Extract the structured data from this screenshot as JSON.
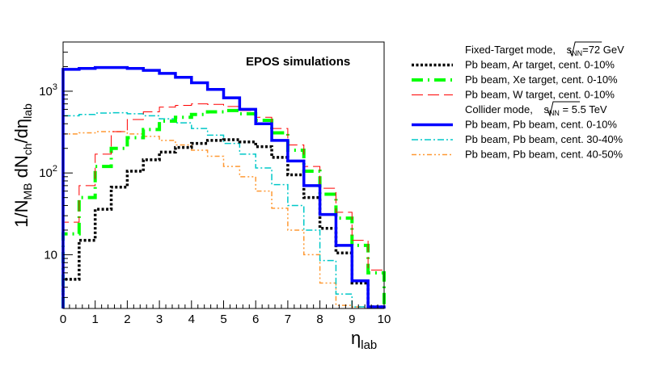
{
  "chart_data": {
    "type": "line",
    "step": true,
    "title": "EPOS simulations",
    "xlabel": "η_lab",
    "ylabel": "1/N_MB dN_ch/dη_lab",
    "xlim": [
      0,
      10
    ],
    "ylim": [
      2.2,
      4000
    ],
    "yscale": "log",
    "bin_edges": [
      0,
      0.5,
      1,
      1.5,
      2,
      2.5,
      3,
      3.5,
      4,
      4.5,
      5,
      5.5,
      6,
      6.5,
      7,
      7.5,
      8,
      8.5,
      9,
      9.5,
      10
    ],
    "x_ticks": [
      "0",
      "1",
      "2",
      "3",
      "4",
      "5",
      "6",
      "7",
      "8",
      "9",
      "10"
    ],
    "x_tick_values": [
      0,
      1,
      2,
      3,
      4,
      5,
      6,
      7,
      8,
      9,
      10
    ],
    "y_ticks": [
      "10",
      "10²",
      "10³"
    ],
    "y_tick_values": [
      10,
      100,
      1000
    ],
    "legend_headers": [
      {
        "text": "Fixed-Target mode, ",
        "sqrt_label": "s",
        "sub": "NN",
        "suffix": "=72 GeV"
      },
      {
        "text": "Collider mode, ",
        "sqrt_label": "s",
        "sub": "NN",
        "suffix": " = 5.5 TeV"
      }
    ],
    "series": [
      {
        "name": "Pb beam, Ar target, cent. 0-10%",
        "color": "#000000",
        "values": [
          5,
          15,
          36,
          67,
          105,
          145,
          180,
          205,
          230,
          250,
          255,
          240,
          210,
          155,
          95,
          50,
          21,
          10.5,
          4.5,
          2.3
        ]
      },
      {
        "name": "Pb beam, Xe target, cent. 0-10%",
        "color": "#00ff00",
        "values": [
          18,
          50,
          120,
          200,
          270,
          340,
          430,
          480,
          520,
          560,
          580,
          530,
          440,
          310,
          190,
          105,
          55,
          28,
          13,
          6
        ]
      },
      {
        "name": "Pb beam, W target, cent. 0-10%",
        "color": "#ff0000",
        "values": [
          25,
          70,
          170,
          320,
          450,
          560,
          640,
          670,
          700,
          690,
          650,
          580,
          480,
          350,
          220,
          120,
          65,
          33,
          15,
          6.5
        ]
      },
      {
        "name": "Pb beam, Pb beam, cent. 0-10%",
        "color": "#0000ff",
        "values": [
          1850,
          1900,
          1950,
          1950,
          1900,
          1800,
          1650,
          1480,
          1270,
          1050,
          830,
          600,
          400,
          250,
          140,
          70,
          31,
          13,
          4.8,
          2.3
        ]
      },
      {
        "name": "Pb beam, Pb beam, cent. 30-40%",
        "color": "#00c8c8",
        "values": [
          500,
          520,
          540,
          545,
          530,
          500,
          460,
          410,
          350,
          290,
          230,
          170,
          115,
          72,
          40,
          20,
          8.5,
          3.3,
          2.3,
          2.3
        ]
      },
      {
        "name": "Pb beam, Pb beam, cent. 40-50%",
        "color": "#ff9933",
        "values": [
          300,
          310,
          320,
          320,
          300,
          280,
          250,
          220,
          190,
          160,
          120,
          90,
          60,
          37,
          20,
          10,
          4.5,
          2.4,
          2.3,
          2.3
        ]
      }
    ]
  }
}
